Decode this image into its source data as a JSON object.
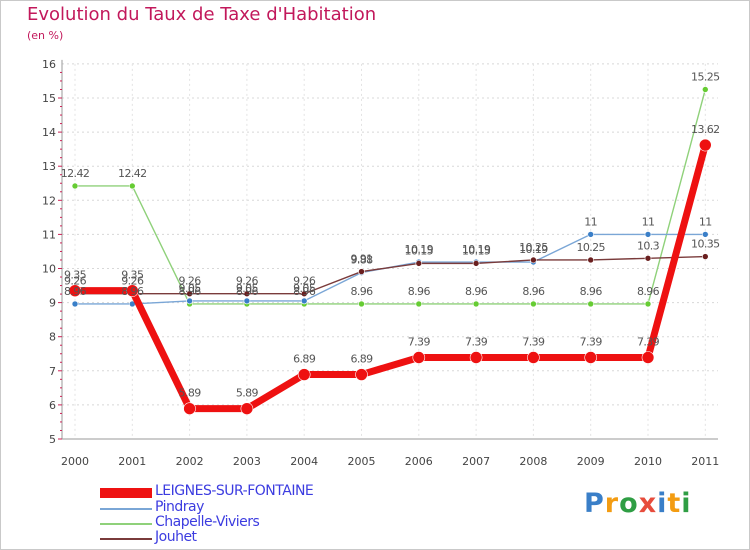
{
  "chart_data": {
    "type": "line",
    "title": "Evolution du Taux de Taxe d'Habitation",
    "subtitle": "(en %)",
    "xlabel": "",
    "ylabel": "",
    "ylim": [
      5,
      16
    ],
    "y_ticks": [
      "5",
      "6",
      "7",
      "8",
      "9",
      "10",
      "11",
      "12",
      "13",
      "14",
      "15",
      "16"
    ],
    "categories": [
      "2000",
      "2001",
      "2002",
      "2003",
      "2004",
      "2005",
      "2006",
      "2007",
      "2008",
      "2009",
      "2010",
      "2011"
    ],
    "series": [
      {
        "name": "Chapelle-Viviers",
        "color": "#8fd17a",
        "marker_color": "#66cc33",
        "values": [
          12.42,
          12.42,
          8.96,
          8.96,
          8.96,
          8.96,
          8.96,
          8.96,
          8.96,
          8.96,
          8.96,
          15.25
        ],
        "labels": [
          "12.42",
          "12.42",
          "8.96",
          "8.96",
          "8.96",
          "8.96",
          "8.96",
          "8.96",
          "8.96",
          "8.96",
          "8.96",
          "15.25"
        ],
        "label_pos": [
          "above",
          "above",
          "above",
          "above",
          "above",
          "above",
          "above",
          "above",
          "above",
          "above",
          "above",
          "above"
        ]
      },
      {
        "name": "Pindray",
        "color": "#7aa6d6",
        "marker_color": "#3a7fc8",
        "values": [
          8.96,
          8.96,
          9.05,
          9.05,
          9.05,
          9.88,
          10.19,
          10.19,
          10.19,
          11,
          11,
          11
        ],
        "labels": [
          "8.96",
          "8.96",
          "9.05",
          "9.05",
          "9.05",
          "9.88",
          "10.19",
          "10.19",
          "10.19",
          "11",
          "11",
          "11"
        ],
        "label_pos": [
          "above",
          "above",
          "above",
          "above",
          "above",
          "above",
          "above",
          "above",
          "above",
          "above",
          "above",
          "above"
        ]
      },
      {
        "name": "Jouhet",
        "color": "#7a3b3b",
        "marker_color": "#6a1f1f",
        "values": [
          9.26,
          9.26,
          9.26,
          9.26,
          9.26,
          9.91,
          10.15,
          10.15,
          10.25,
          10.25,
          10.3,
          10.35
        ],
        "labels": [
          "9.26",
          "9.26",
          "9.26",
          "9.26",
          "9.26",
          "9.91",
          "10.15",
          "10.15",
          "10.25",
          "10.25",
          "10.3",
          "10.35"
        ],
        "label_pos": [
          "above",
          "above",
          "above",
          "above",
          "above",
          "above",
          "above",
          "above",
          "above",
          "above",
          "above",
          "above"
        ]
      },
      {
        "name": "LEIGNES-SUR-FONTAINE",
        "color": "#ee1111",
        "marker_color": "#ee1111",
        "values": [
          9.35,
          9.35,
          5.89,
          5.89,
          6.89,
          6.89,
          7.39,
          7.39,
          7.39,
          7.39,
          7.39,
          13.62
        ],
        "labels": [
          "9.35",
          "9.35",
          "5.89",
          "5.89",
          "6.89",
          "6.89",
          "7.39",
          "7.39",
          "7.39",
          "7.39",
          "7.39",
          "13.62"
        ],
        "label_pos": [
          "above",
          "above",
          "above",
          "above",
          "above",
          "above",
          "above",
          "above",
          "above",
          "above",
          "above",
          "above"
        ]
      }
    ],
    "legend": [
      {
        "name": "LEIGNES-SUR-FONTAINE",
        "color": "#ee1111",
        "thick": true
      },
      {
        "name": "Pindray",
        "color": "#7aa6d6",
        "thick": false
      },
      {
        "name": "Chapelle-Viviers",
        "color": "#8fd17a",
        "thick": false
      },
      {
        "name": "Jouhet",
        "color": "#7a3b3b",
        "thick": false
      }
    ]
  },
  "logo": {
    "text": "Proxiti",
    "letters": [
      "P",
      "r",
      "o",
      "x",
      "i",
      "t",
      "i"
    ],
    "colors": [
      "#3a7fc8",
      "#f39c12",
      "#2f9e44",
      "#e74c3c",
      "#3a7fc8",
      "#f39c12",
      "#2f9e44"
    ]
  }
}
